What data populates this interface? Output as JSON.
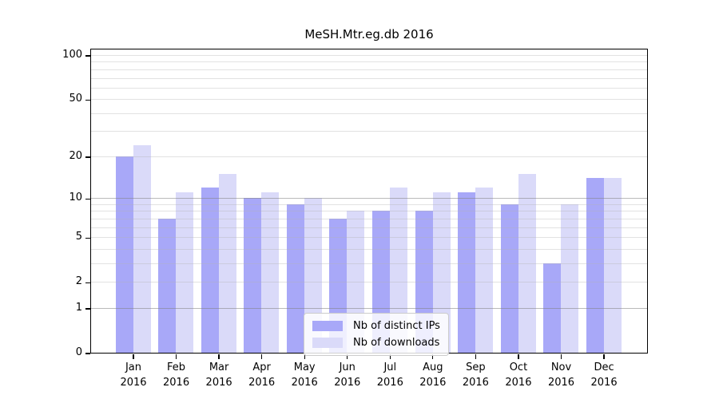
{
  "chart_data": {
    "type": "bar",
    "title": "MeSH.Mtr.eg.db 2016",
    "categories": [
      "Jan",
      "Feb",
      "Mar",
      "Apr",
      "May",
      "Jun",
      "Jul",
      "Aug",
      "Sep",
      "Oct",
      "Nov",
      "Dec"
    ],
    "year_label": "2016",
    "series": [
      {
        "name": "Nb of distinct IPs",
        "color": "#a8a8f8",
        "values": [
          20,
          7,
          12,
          10,
          9,
          7,
          8,
          8,
          11,
          9,
          3,
          14
        ]
      },
      {
        "name": "Nb of downloads",
        "color": "#dadaf9",
        "values": [
          24,
          11,
          15,
          11,
          10,
          8,
          12,
          11,
          12,
          15,
          9,
          14
        ]
      }
    ],
    "yscale": "log1p",
    "ylim": [
      0,
      100
    ],
    "yticks": [
      0,
      1,
      2,
      5,
      10,
      20,
      50,
      100
    ],
    "major_gridlines": [
      1,
      10
    ],
    "minor_gridlines": [
      2,
      3,
      4,
      5,
      6,
      7,
      8,
      9,
      20,
      30,
      40,
      50,
      60,
      70,
      80,
      90,
      100
    ],
    "grid": "horizontal",
    "legend_position": "bottom-center",
    "colors": {
      "distinct_ips": "#a8a8f8",
      "downloads": "#dadaf9",
      "axis": "#000000",
      "grid_major": "#828282",
      "grid_minor": "#b4b4b4"
    }
  }
}
